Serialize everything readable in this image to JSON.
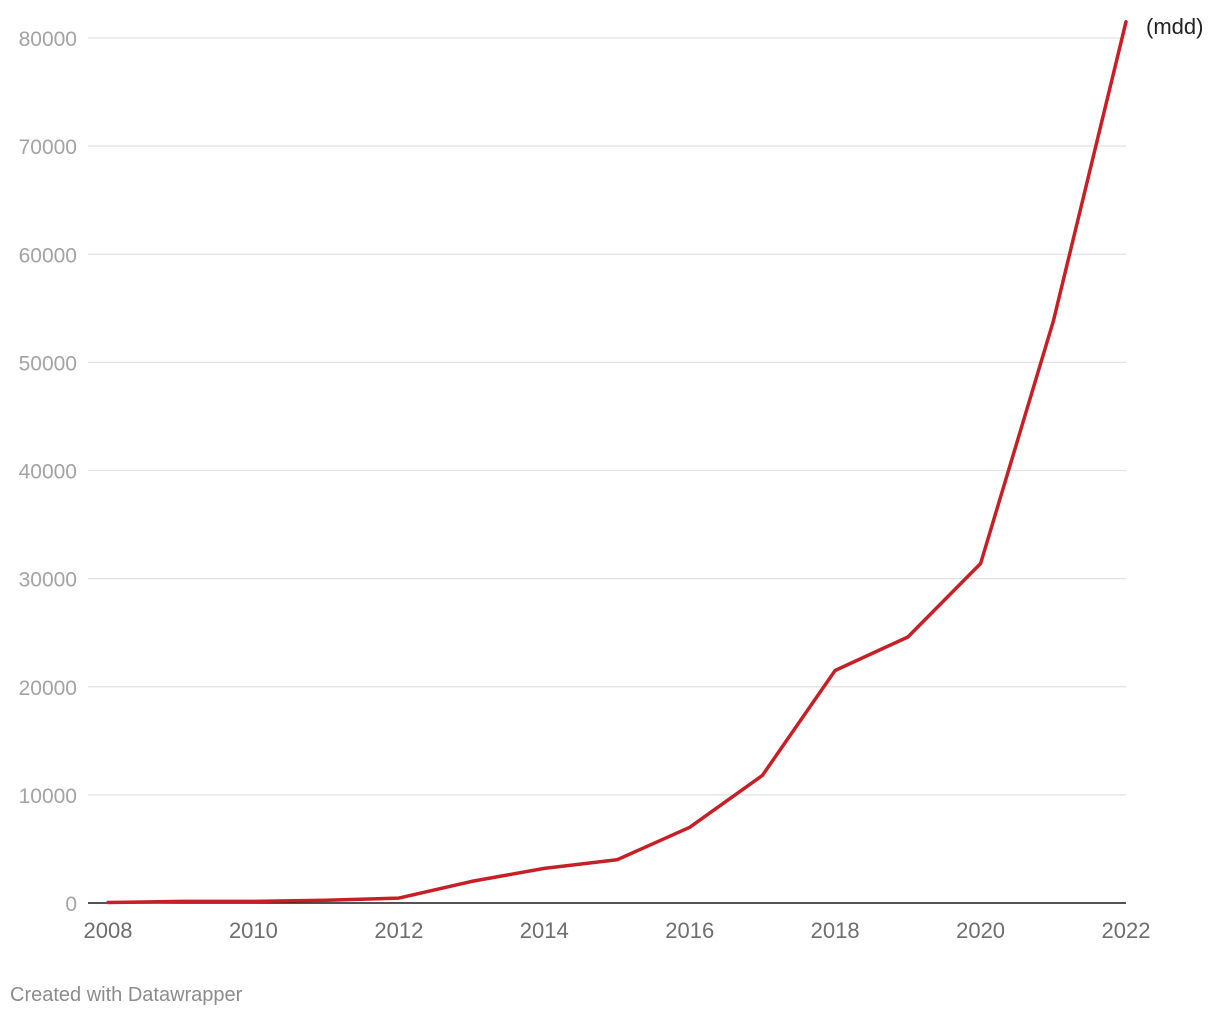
{
  "chart_data": {
    "type": "line",
    "title": "",
    "xlabel": "",
    "ylabel": "",
    "x": [
      2008,
      2009,
      2010,
      2011,
      2012,
      2013,
      2014,
      2015,
      2016,
      2017,
      2018,
      2019,
      2020,
      2021,
      2022
    ],
    "series": [
      {
        "name": "(mdd)",
        "color": "#c62026",
        "values": [
          50,
          150,
          150,
          250,
          450,
          2000,
          3200,
          4000,
          7000,
          11800,
          21500,
          24600,
          31400,
          53800,
          81500
        ]
      }
    ],
    "ylim": [
      0,
      80000
    ],
    "xlim": [
      2008,
      2022
    ],
    "yticks": [
      0,
      10000,
      20000,
      30000,
      40000,
      50000,
      60000,
      70000,
      80000
    ],
    "xticks": [
      2008,
      2010,
      2012,
      2014,
      2016,
      2018,
      2020,
      2022
    ],
    "ytick_labels": [
      "0",
      "10000",
      "20000",
      "30000",
      "40000",
      "50000",
      "60000",
      "70000",
      "80000"
    ],
    "xtick_labels": [
      "2008",
      "2010",
      "2012",
      "2014",
      "2016",
      "2018",
      "2020",
      "2022"
    ],
    "grid": true,
    "legend": "none"
  },
  "footer": {
    "credit": "Created with Datawrapper"
  }
}
